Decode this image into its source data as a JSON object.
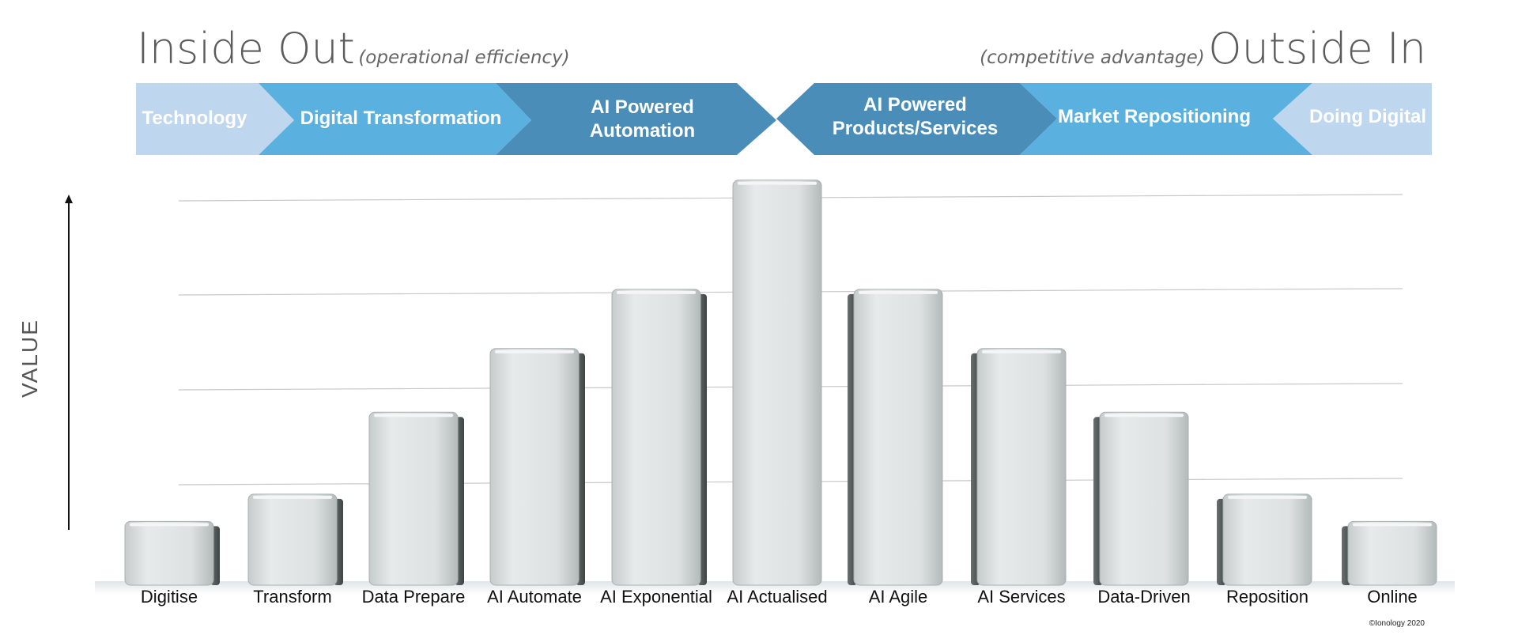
{
  "header": {
    "left_title": "Inside Out",
    "left_subtitle": "(operational efficiency)",
    "right_subtitle": "(competitive advantage)",
    "right_title": "Outside In"
  },
  "banner": {
    "segments": [
      {
        "label": "Technology",
        "color": "#bed6ee"
      },
      {
        "label": "Digital Transformation",
        "color": "#5ab0df"
      },
      {
        "label": "AI Powered Automation",
        "color": "#4a8db8"
      },
      {
        "label": "AI Powered Products/Services",
        "color": "#4a8db8"
      },
      {
        "label": "Market Repositioning",
        "color": "#5ab0df"
      },
      {
        "label": "Doing Digital",
        "color": "#bed6ee"
      }
    ]
  },
  "chart_data": {
    "type": "bar",
    "title": "",
    "xlabel": "",
    "ylabel": "VALUE",
    "categories": [
      "Digitise",
      "Transform",
      "Data Prepare",
      "AI Automate",
      "AI Exponential",
      "AI Actualised",
      "AI Agile",
      "AI Services",
      "Data-Driven",
      "Reposition",
      "Online"
    ],
    "values": [
      0.7,
      1.0,
      1.9,
      2.6,
      3.25,
      4.45,
      3.25,
      2.6,
      1.9,
      1.0,
      0.7
    ],
    "ylim": [
      0,
      4.5
    ],
    "grid": true,
    "gridlines": 4,
    "bar_color": "#dfe2e2"
  },
  "footer": {
    "copyright": "©Ionology 2020"
  }
}
